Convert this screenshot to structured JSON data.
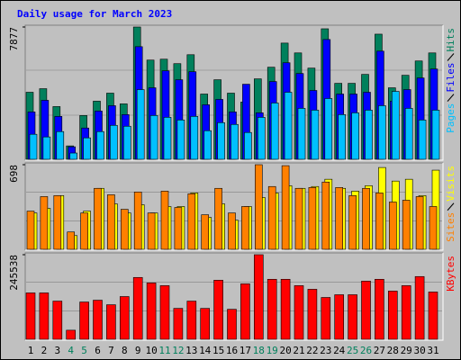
{
  "chart_data": [
    {
      "type": "bar",
      "title": "Daily usage for March 2023",
      "ylim": [
        0,
        7877
      ],
      "yticks": [
        7877
      ],
      "series": [
        {
          "name": "Hits",
          "color": "#00805c",
          "values": [
            3992,
            4205,
            3140,
            798,
            2608,
            3460,
            3939,
            3300,
            7877,
            5908,
            5961,
            5695,
            6227,
            3885,
            4737,
            3939,
            3406,
            4790,
            5482,
            6919,
            6334,
            5429,
            7771,
            4524,
            4524,
            5056,
            7451,
            4258,
            5003,
            5855,
            6334
          ]
        },
        {
          "name": "Files",
          "color": "#0000ff",
          "values": [
            2821,
            3513,
            2555,
            745,
            1863,
            2874,
            3193,
            2661,
            6706,
            4258,
            5269,
            4737,
            5216,
            3247,
            3566,
            2821,
            4471,
            2768,
            4630,
            5748,
            5109,
            4098,
            7132,
            3885,
            3885,
            3992,
            6440,
            3460,
            4151,
            4843,
            5376
          ]
        },
        {
          "name": "Pages",
          "color": "#00c0ff",
          "values": [
            1490,
            1331,
            1650,
            373,
            1277,
            1650,
            2022,
            1969,
            4151,
            2608,
            2501,
            2342,
            2555,
            1703,
            2182,
            2076,
            1597,
            2501,
            3353,
            3992,
            3034,
            2927,
            3619,
            2661,
            2768,
            2927,
            3193,
            4045,
            3034,
            2342,
            2927
          ]
        }
      ]
    },
    {
      "type": "bar",
      "ylim": [
        0,
        698
      ],
      "yticks": [
        698
      ],
      "series": [
        {
          "name": "Visits",
          "color": "#ffff00",
          "values": [
            300,
            338,
            443,
            113,
            315,
            503,
            375,
            300,
            368,
            300,
            353,
            353,
            465,
            263,
            375,
            240,
            353,
            428,
            465,
            525,
            503,
            518,
            578,
            503,
            480,
            525,
            675,
            563,
            578,
            443,
            653
          ]
        },
        {
          "name": "Sites",
          "color": "#ff8000",
          "values": [
            315,
            435,
            443,
            143,
            300,
            503,
            450,
            330,
            473,
            300,
            480,
            345,
            458,
            285,
            503,
            300,
            353,
            698,
            518,
            690,
            503,
            510,
            555,
            510,
            443,
            503,
            465,
            390,
            405,
            435,
            353
          ]
        }
      ]
    },
    {
      "type": "bar",
      "ylim": [
        0,
        245538
      ],
      "yticks": [
        245538
      ],
      "categories": [
        "1",
        "2",
        "3",
        "4",
        "5",
        "6",
        "7",
        "8",
        "9",
        "10",
        "11",
        "12",
        "13",
        "14",
        "15",
        "16",
        "17",
        "18",
        "19",
        "20",
        "21",
        "22",
        "23",
        "24",
        "25",
        "26",
        "27",
        "28",
        "29",
        "30",
        "31"
      ],
      "category_colors": [
        "#000000",
        "#000000",
        "#000000",
        "#00805c",
        "#00805c",
        "#000000",
        "#000000",
        "#000000",
        "#000000",
        "#000000",
        "#00805c",
        "#00805c",
        "#000000",
        "#000000",
        "#000000",
        "#000000",
        "#000000",
        "#00805c",
        "#00805c",
        "#000000",
        "#000000",
        "#000000",
        "#000000",
        "#000000",
        "#00805c",
        "#00805c",
        "#000000",
        "#000000",
        "#000000",
        "#000000",
        "#000000"
      ],
      "series": [
        {
          "name": "KBytes",
          "color": "#ff0000",
          "values": [
            134650,
            134650,
            110888,
            26402,
            108245,
            113528,
            100326,
            124087,
            179532,
            163690,
            155770,
            89765,
            110888,
            89765,
            171611,
            87126,
            161050,
            245538,
            174250,
            174250,
            155770,
            145210,
            121447,
            129369,
            129369,
            168971,
            174250,
            139926,
            155770,
            182170,
            137290
          ]
        }
      ]
    }
  ]
}
